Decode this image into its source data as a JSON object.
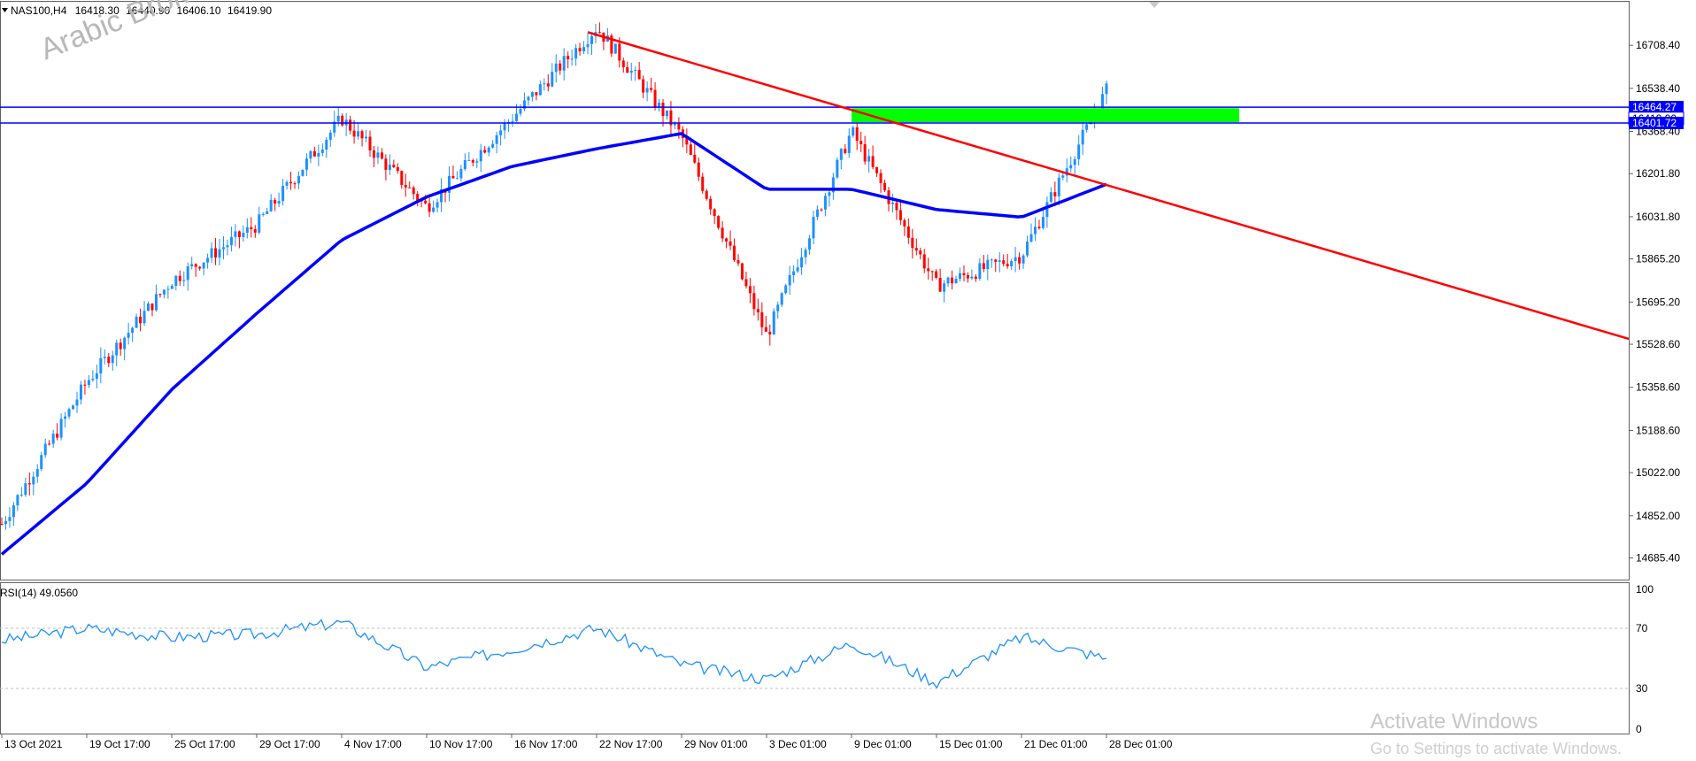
{
  "symbol_header": {
    "symbol": "NAS100,H4",
    "open": "16418.30",
    "high": "16440.90",
    "low": "16406.10",
    "close": "16419.90"
  },
  "watermark": "Arabic Broker",
  "os_notice": {
    "title": "Activate Windows",
    "subtitle": "Go to Settings to activate Windows."
  },
  "colors": {
    "bull": "#1e90ff",
    "bear": "#ff0000",
    "ma": "#0000ff",
    "trendline": "#ff0000",
    "zone": "#00ff00",
    "hline": "#0000ff",
    "rsi": "#1e90ff"
  },
  "price_axis": {
    "ticks": [
      "16708.40",
      "16538.40",
      "16368.40",
      "16201.80",
      "16031.80",
      "15865.20",
      "15695.20",
      "15528.60",
      "15358.60",
      "15188.60",
      "15022.00",
      "14852.00",
      "14685.40"
    ]
  },
  "price_tags": [
    "16464.27",
    "16419.90",
    "16401.72"
  ],
  "time_axis": {
    "labels": [
      "13 Oct 2021",
      "19 Oct 17:00",
      "25 Oct 17:00",
      "29 Oct 17:00",
      "4 Nov 17:00",
      "10 Nov 17:00",
      "16 Nov 17:00",
      "22 Nov 17:00",
      "29 Nov 01:00",
      "3 Dec 01:00",
      "9 Dec 01:00",
      "15 Dec 01:00",
      "21 Dec 01:00",
      "28 Dec 01:00"
    ]
  },
  "rsi": {
    "label": "RSI(14) 49.0560",
    "ticks": [
      "100",
      "70",
      "30",
      "0"
    ]
  },
  "chart_data": {
    "type": "line",
    "title": "NAS100,H4",
    "ylim": [
      14600,
      16880
    ],
    "close_path": {
      "name": "price",
      "x": [
        "13 Oct 2021",
        "19 Oct 17:00",
        "25 Oct 17:00",
        "29 Oct 17:00",
        "4 Nov 17:00",
        "10 Nov 17:00",
        "16 Nov 17:00",
        "22 Nov 17:00",
        "29 Nov 01:00",
        "3 Dec 01:00",
        "9 Dec 01:00",
        "15 Dec 01:00",
        "21 Dec 01:00",
        "28 Dec 01:00"
      ],
      "values": [
        14820,
        15380,
        15780,
        16000,
        16420,
        16070,
        16420,
        16780,
        16350,
        15560,
        16370,
        15760,
        15880,
        16530
      ]
    },
    "ma": {
      "name": "moving average",
      "x": [
        "13 Oct 2021",
        "19 Oct 17:00",
        "25 Oct 17:00",
        "29 Oct 17:00",
        "4 Nov 17:00",
        "10 Nov 17:00",
        "16 Nov 17:00",
        "22 Nov 17:00",
        "29 Nov 01:00",
        "3 Dec 01:00",
        "9 Dec 01:00",
        "15 Dec 01:00",
        "21 Dec 01:00",
        "28 Dec 01:00"
      ],
      "values": [
        14700,
        14980,
        15350,
        15650,
        15940,
        16110,
        16230,
        16300,
        16360,
        16140,
        16140,
        16060,
        16030,
        16160
      ]
    },
    "trendline": {
      "start": {
        "x": "22 Nov 17:00",
        "y": 16760
      },
      "end_value": 15550
    },
    "levels": [
      16464.27,
      16401.72
    ],
    "zone": {
      "from": "9 Dec 01:00",
      "low": 16405,
      "high": 16460
    },
    "rsi_series": [
      62,
      70,
      64,
      66,
      74,
      44,
      56,
      70,
      46,
      36,
      60,
      34,
      64,
      50
    ],
    "rsi_levels": [
      70,
      30
    ]
  }
}
